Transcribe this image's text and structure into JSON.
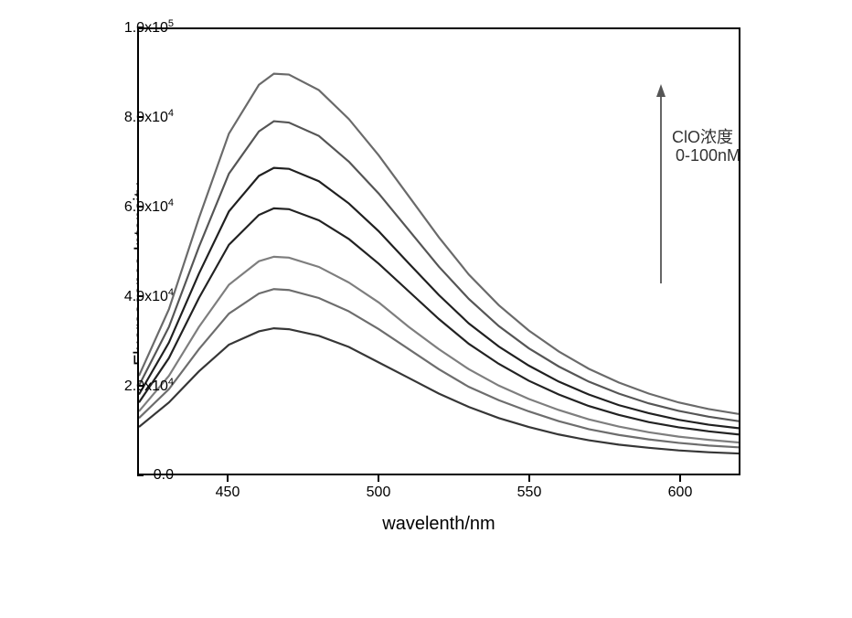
{
  "chart": {
    "type": "line",
    "xlabel": "wavelenth/nm",
    "ylabel": "Fluorescence Intensity",
    "xlim": [
      420,
      620
    ],
    "ylim": [
      0,
      100000
    ],
    "x_ticks": [
      450,
      500,
      550,
      600
    ],
    "y_ticks": [
      {
        "val": 0,
        "label": "0.0"
      },
      {
        "val": 20000,
        "label": "2.0x10"
      },
      {
        "val": 40000,
        "label": "4.0x10"
      },
      {
        "val": 60000,
        "label": "6.0x10"
      },
      {
        "val": 80000,
        "label": "8.0x10"
      },
      {
        "val": 100000,
        "label": "1.0x10"
      }
    ],
    "y_tick_exp4": "4",
    "y_tick_exp5": "5",
    "background_color": "#ffffff",
    "border_color": "#000000",
    "annotation": {
      "line1": "ClO浓度",
      "line2": "0-100nM",
      "arrow_color": "#555555"
    },
    "series": [
      {
        "color": "#363636",
        "points": [
          [
            420,
            10500
          ],
          [
            430,
            16000
          ],
          [
            440,
            23000
          ],
          [
            450,
            29000
          ],
          [
            460,
            32000
          ],
          [
            465,
            32700
          ],
          [
            470,
            32500
          ],
          [
            480,
            31000
          ],
          [
            490,
            28500
          ],
          [
            500,
            25000
          ],
          [
            510,
            21500
          ],
          [
            520,
            18000
          ],
          [
            530,
            15000
          ],
          [
            540,
            12500
          ],
          [
            550,
            10500
          ],
          [
            560,
            8800
          ],
          [
            570,
            7500
          ],
          [
            580,
            6500
          ],
          [
            590,
            5800
          ],
          [
            600,
            5200
          ],
          [
            610,
            4800
          ],
          [
            620,
            4500
          ]
        ]
      },
      {
        "color": "#6d6d6d",
        "points": [
          [
            420,
            12500
          ],
          [
            430,
            19000
          ],
          [
            440,
            28000
          ],
          [
            450,
            36000
          ],
          [
            460,
            40500
          ],
          [
            465,
            41500
          ],
          [
            470,
            41300
          ],
          [
            480,
            39500
          ],
          [
            490,
            36500
          ],
          [
            500,
            32500
          ],
          [
            510,
            28000
          ],
          [
            520,
            23500
          ],
          [
            530,
            19500
          ],
          [
            540,
            16500
          ],
          [
            550,
            14000
          ],
          [
            560,
            11800
          ],
          [
            570,
            10000
          ],
          [
            580,
            8700
          ],
          [
            590,
            7700
          ],
          [
            600,
            6900
          ],
          [
            610,
            6300
          ],
          [
            620,
            5900
          ]
        ]
      },
      {
        "color": "#7e7e7e",
        "points": [
          [
            420,
            14000
          ],
          [
            430,
            22000
          ],
          [
            440,
            33000
          ],
          [
            450,
            42500
          ],
          [
            460,
            47800
          ],
          [
            465,
            48800
          ],
          [
            470,
            48600
          ],
          [
            480,
            46500
          ],
          [
            490,
            43000
          ],
          [
            500,
            38500
          ],
          [
            510,
            33000
          ],
          [
            520,
            28000
          ],
          [
            530,
            23500
          ],
          [
            540,
            19800
          ],
          [
            550,
            16800
          ],
          [
            560,
            14300
          ],
          [
            570,
            12200
          ],
          [
            580,
            10600
          ],
          [
            590,
            9300
          ],
          [
            600,
            8300
          ],
          [
            610,
            7600
          ],
          [
            620,
            7000
          ]
        ]
      },
      {
        "color": "#222222",
        "points": [
          [
            420,
            16000
          ],
          [
            430,
            26000
          ],
          [
            440,
            39500
          ],
          [
            450,
            51500
          ],
          [
            460,
            58200
          ],
          [
            465,
            59700
          ],
          [
            470,
            59500
          ],
          [
            480,
            57000
          ],
          [
            490,
            52800
          ],
          [
            500,
            47200
          ],
          [
            510,
            41000
          ],
          [
            520,
            34800
          ],
          [
            530,
            29200
          ],
          [
            540,
            24700
          ],
          [
            550,
            20900
          ],
          [
            560,
            17800
          ],
          [
            570,
            15200
          ],
          [
            580,
            13200
          ],
          [
            590,
            11600
          ],
          [
            600,
            10400
          ],
          [
            610,
            9500
          ],
          [
            620,
            8800
          ]
        ]
      },
      {
        "color": "#202020",
        "points": [
          [
            420,
            17800
          ],
          [
            430,
            29500
          ],
          [
            440,
            45000
          ],
          [
            450,
            59000
          ],
          [
            460,
            67000
          ],
          [
            465,
            68800
          ],
          [
            470,
            68600
          ],
          [
            480,
            65800
          ],
          [
            490,
            60800
          ],
          [
            500,
            54500
          ],
          [
            510,
            47300
          ],
          [
            520,
            40200
          ],
          [
            530,
            33800
          ],
          [
            540,
            28600
          ],
          [
            550,
            24300
          ],
          [
            560,
            20700
          ],
          [
            570,
            17800
          ],
          [
            580,
            15400
          ],
          [
            590,
            13600
          ],
          [
            600,
            12100
          ],
          [
            610,
            11000
          ],
          [
            620,
            10200
          ]
        ]
      },
      {
        "color": "#555555",
        "points": [
          [
            420,
            19800
          ],
          [
            430,
            33000
          ],
          [
            440,
            51000
          ],
          [
            450,
            67500
          ],
          [
            460,
            77000
          ],
          [
            465,
            79300
          ],
          [
            470,
            79000
          ],
          [
            480,
            76000
          ],
          [
            490,
            70200
          ],
          [
            500,
            63000
          ],
          [
            510,
            54800
          ],
          [
            520,
            46600
          ],
          [
            530,
            39300
          ],
          [
            540,
            33200
          ],
          [
            550,
            28200
          ],
          [
            560,
            24100
          ],
          [
            570,
            20700
          ],
          [
            580,
            18000
          ],
          [
            590,
            15800
          ],
          [
            600,
            14100
          ],
          [
            610,
            12800
          ],
          [
            620,
            11800
          ]
        ]
      },
      {
        "color": "#6a6a6a",
        "points": [
          [
            420,
            22000
          ],
          [
            430,
            37000
          ],
          [
            440,
            57500
          ],
          [
            450,
            76500
          ],
          [
            460,
            87500
          ],
          [
            465,
            90000
          ],
          [
            470,
            89800
          ],
          [
            480,
            86300
          ],
          [
            490,
            79800
          ],
          [
            500,
            71600
          ],
          [
            510,
            62400
          ],
          [
            520,
            53200
          ],
          [
            530,
            44800
          ],
          [
            540,
            37900
          ],
          [
            550,
            32200
          ],
          [
            560,
            27500
          ],
          [
            570,
            23600
          ],
          [
            580,
            20500
          ],
          [
            590,
            18000
          ],
          [
            600,
            16000
          ],
          [
            610,
            14500
          ],
          [
            620,
            13400
          ]
        ]
      }
    ]
  }
}
